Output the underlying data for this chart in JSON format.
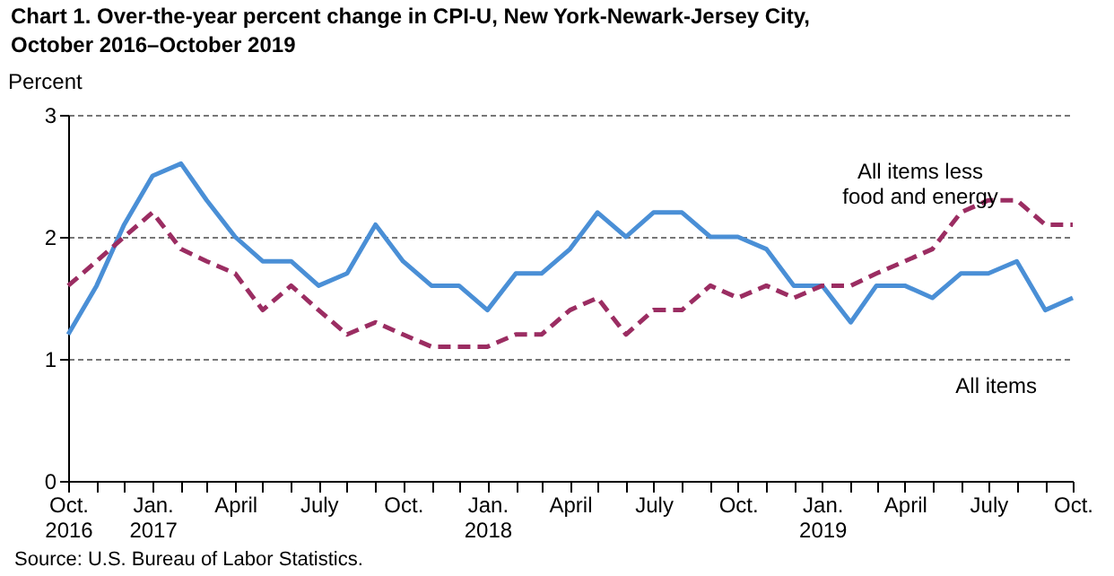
{
  "chart_data": {
    "type": "line",
    "title": "Chart 1. Over-the-year percent change in CPI-U, New York-Newark-Jersey  City, October 2016–October 2019",
    "ylabel": "Percent",
    "annotations": [
      "Source: U.S. Bureau of Labor Statistics."
    ],
    "x": [
      "2016-10",
      "2016-11",
      "2016-12",
      "2017-01",
      "2017-02",
      "2017-03",
      "2017-04",
      "2017-05",
      "2017-06",
      "2017-07",
      "2017-08",
      "2017-09",
      "2017-10",
      "2017-11",
      "2017-12",
      "2018-01",
      "2018-02",
      "2018-03",
      "2018-04",
      "2018-05",
      "2018-06",
      "2018-07",
      "2018-08",
      "2018-09",
      "2018-10",
      "2018-11",
      "2018-12",
      "2019-01",
      "2019-02",
      "2019-03",
      "2019-04",
      "2019-05",
      "2019-06",
      "2019-07",
      "2019-08",
      "2019-09",
      "2019-10"
    ],
    "series": [
      {
        "name": "All items",
        "color": "#4a8fd6",
        "line_style": "solid",
        "values": [
          1.2,
          1.6,
          2.1,
          2.5,
          2.6,
          2.3,
          2.0,
          1.8,
          1.8,
          1.6,
          1.7,
          2.1,
          1.8,
          1.6,
          1.6,
          1.4,
          1.7,
          1.7,
          1.9,
          2.2,
          2.0,
          2.2,
          2.2,
          2.0,
          2.0,
          1.9,
          1.6,
          1.6,
          1.3,
          1.6,
          1.6,
          1.5,
          1.7,
          1.7,
          1.8,
          1.4,
          1.5
        ]
      },
      {
        "name": "All items less food and energy",
        "color": "#9b2d62",
        "line_style": "dashed",
        "values": [
          1.6,
          1.8,
          2.0,
          2.2,
          1.9,
          1.8,
          1.7,
          1.4,
          1.6,
          1.4,
          1.2,
          1.3,
          1.2,
          1.1,
          1.1,
          1.1,
          1.2,
          1.2,
          1.4,
          1.5,
          1.2,
          1.4,
          1.4,
          1.6,
          1.5,
          1.6,
          1.5,
          1.6,
          1.6,
          1.7,
          1.8,
          1.9,
          2.2,
          2.3,
          2.3,
          2.1,
          2.1
        ]
      }
    ],
    "xlim": [
      "2016-10",
      "2019-10"
    ],
    "xticks": [
      {
        "value": "2016-10",
        "label": "Oct. 2016"
      },
      {
        "value": "2016-11",
        "label": null
      },
      {
        "value": "2016-12",
        "label": null
      },
      {
        "value": "2017-01",
        "label": "Jan. 2017"
      },
      {
        "value": "2017-02",
        "label": null
      },
      {
        "value": "2017-03",
        "label": null
      },
      {
        "value": "2017-04",
        "label": "April"
      },
      {
        "value": "2017-05",
        "label": null
      },
      {
        "value": "2017-06",
        "label": null
      },
      {
        "value": "2017-07",
        "label": "July"
      },
      {
        "value": "2017-08",
        "label": null
      },
      {
        "value": "2017-09",
        "label": null
      },
      {
        "value": "2017-10",
        "label": "Oct."
      },
      {
        "value": "2017-11",
        "label": null
      },
      {
        "value": "2017-12",
        "label": null
      },
      {
        "value": "2018-01",
        "label": "Jan. 2018"
      },
      {
        "value": "2018-02",
        "label": null
      },
      {
        "value": "2018-03",
        "label": null
      },
      {
        "value": "2018-04",
        "label": "April"
      },
      {
        "value": "2018-05",
        "label": null
      },
      {
        "value": "2018-06",
        "label": null
      },
      {
        "value": "2018-07",
        "label": "July"
      },
      {
        "value": "2018-08",
        "label": null
      },
      {
        "value": "2018-09",
        "label": null
      },
      {
        "value": "2018-10",
        "label": "Oct."
      },
      {
        "value": "2018-11",
        "label": null
      },
      {
        "value": "2018-12",
        "label": null
      },
      {
        "value": "2019-01",
        "label": "Jan. 2019"
      },
      {
        "value": "2019-02",
        "label": null
      },
      {
        "value": "2019-03",
        "label": null
      },
      {
        "value": "2019-04",
        "label": "April"
      },
      {
        "value": "2019-05",
        "label": null
      },
      {
        "value": "2019-06",
        "label": null
      },
      {
        "value": "2019-07",
        "label": "July"
      },
      {
        "value": "2019-08",
        "label": null
      },
      {
        "value": "2019-09",
        "label": null
      },
      {
        "value": "2019-10",
        "label": "Oct."
      }
    ],
    "ylim": [
      0,
      3
    ],
    "yticks": [
      0,
      1,
      2,
      3
    ],
    "grid": "y",
    "legend": false,
    "marker": "none"
  }
}
